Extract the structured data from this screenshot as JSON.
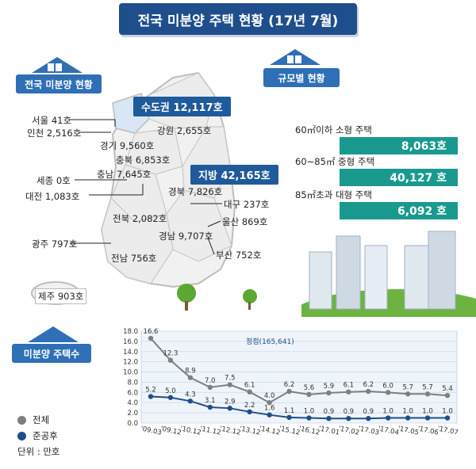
{
  "title": "전국 미분양 주택 현황 (17년 7월)",
  "sections": {
    "national": "전국 미분양 현황",
    "size": "규모별 현황",
    "trend": "미분양 주택수"
  },
  "map": {
    "capital": "수도권 12,117호",
    "local": "지방 42,165호",
    "regions": {
      "seoul": "서울 41호",
      "incheon": "인천 2,516호",
      "gyeonggi": "경기 9,560호",
      "gangwon": "강원 2,655호",
      "chungbuk": "충북 6,853호",
      "sejong": "세종 0호",
      "chungnam": "충남 7,645호",
      "daejeon": "대전 1,083호",
      "gyeongbuk": "경북 7,826호",
      "daegu": "대구 237호",
      "jeonbuk": "전북 2,082호",
      "ulsan": "울산 869호",
      "gwangju": "광주 797호",
      "gyeongnam": "경남 9,707호",
      "jeonnam": "전남 756호",
      "busan": "부산 752호",
      "jeju": "제주 903호"
    }
  },
  "size_stats": [
    {
      "label": "60㎡이하 소형 주택",
      "value": "8,063호"
    },
    {
      "label": "60~85㎡ 중형 주택",
      "value": "40,127 호"
    },
    {
      "label": "85㎡초과 대형 주택",
      "value": "6,092 호"
    }
  ],
  "legend": {
    "total": "전체",
    "completed": "준공후",
    "unit": "단위 : 만호"
  },
  "chart_data": {
    "type": "line",
    "categories": [
      "'09.03",
      "'09.12",
      "'10.12",
      "'11.12",
      "'12.12",
      "'13.12",
      "'14.12",
      "'15.12",
      "'16.12",
      "'17.01",
      "'17.02",
      "'17.03",
      "'17.04",
      "'17.05",
      "'17.06",
      "'17.07"
    ],
    "ylim": [
      0,
      18.0
    ],
    "yticks": [
      "0.0",
      "2.0",
      "4.0",
      "6.0",
      "8.0",
      "10.0",
      "12.0",
      "14.0",
      "16.0",
      "18.0"
    ],
    "annotation": "정점(165,641)",
    "series": [
      {
        "name": "전체",
        "color": "#7f7f7f",
        "values": [
          16.6,
          12.3,
          8.9,
          7.0,
          7.5,
          6.1,
          4.0,
          6.2,
          5.6,
          5.9,
          6.1,
          6.2,
          6.0,
          5.7,
          5.7,
          5.4
        ]
      },
      {
        "name": "준공후",
        "color": "#1f4e8c",
        "values": [
          5.2,
          5.0,
          4.3,
          3.1,
          2.9,
          2.2,
          1.6,
          1.1,
          1.0,
          0.9,
          0.9,
          0.9,
          1.0,
          1.0,
          1.0,
          1.0
        ]
      }
    ]
  }
}
